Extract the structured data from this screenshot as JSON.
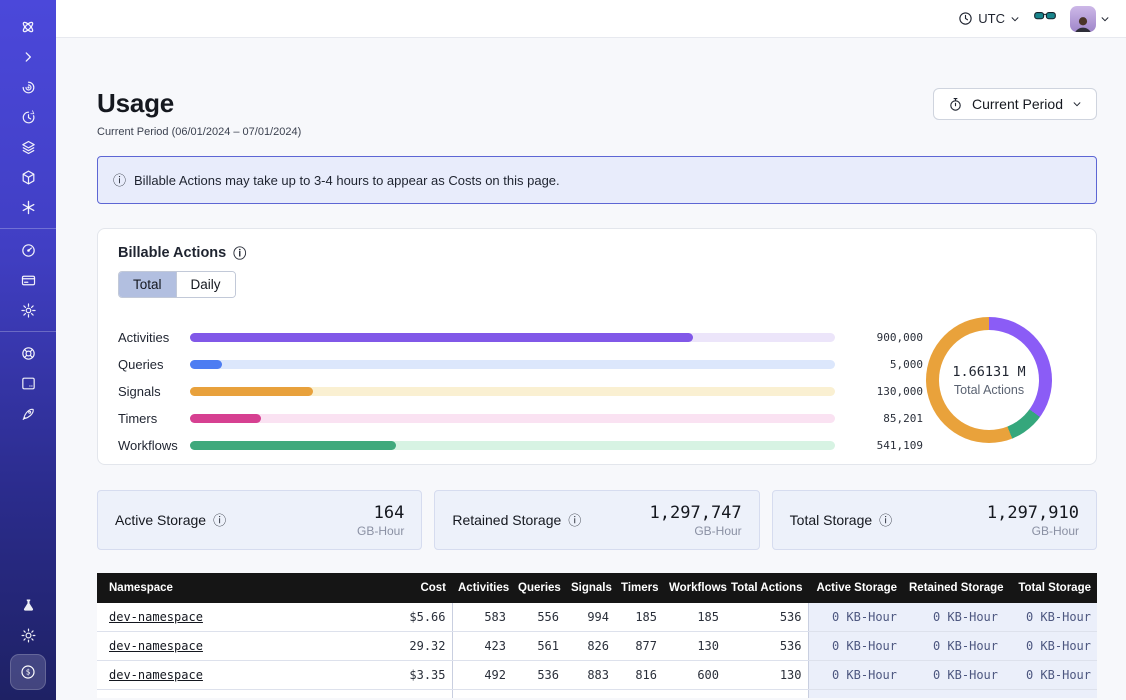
{
  "topbar": {
    "timezone_label": "UTC",
    "icons": [
      "clock-icon",
      "chevron-down-icon",
      "glasses-icon",
      "avatar",
      "chevron-down-icon"
    ]
  },
  "sidebar": {
    "accent_top": "#4b48da",
    "accent_bottom": "#1e2164",
    "top_icons": [
      "temporal-logo-icon",
      "chevron-right-icon",
      "swirl-namespaces-icon",
      "clock-history-icon",
      "layers-icon",
      "cube-icon",
      "asterisk-icon"
    ],
    "mid_icons": [
      "gauge-icon",
      "credit-card-icon",
      "gear-icon"
    ],
    "lower_icons": [
      "lifebuoy-icon",
      "terminal-icon",
      "rocket-icon"
    ],
    "bottom_icons": [
      "flask-icon",
      "sun-icon",
      "dollar-coin-icon"
    ],
    "active_icon": "dollar-coin-icon"
  },
  "header": {
    "title": "Usage",
    "subtitle": "Current Period (06/01/2024 – 07/01/2024)",
    "period_button_label": "Current Period"
  },
  "banner": {
    "text": "Billable Actions may take up to 3-4 hours to appear as Costs on this page."
  },
  "billable": {
    "title": "Billable Actions",
    "tabs": [
      {
        "label": "Total",
        "selected": true
      },
      {
        "label": "Daily",
        "selected": false
      }
    ]
  },
  "chart_data": [
    {
      "type": "bar",
      "orientation": "horizontal",
      "title": "Billable Actions (Total)",
      "categories": [
        "Activities",
        "Queries",
        "Signals",
        "Timers",
        "Workflows"
      ],
      "values": [
        900000,
        5000,
        130000,
        85201,
        541109
      ],
      "value_labels": [
        "900,000",
        "5,000",
        "130,000",
        "85,201",
        "541,109"
      ],
      "colors": [
        "#8158e8",
        "#4d7df2",
        "#e8a13c",
        "#d64091",
        "#3fa97c"
      ],
      "track_colors": [
        "#ece5fa",
        "#dce7fc",
        "#faf0d2",
        "#fae2f2",
        "#d7f3e3"
      ],
      "bar_pct": [
        78,
        5,
        19,
        11,
        32
      ],
      "grid": false,
      "legend": "none"
    },
    {
      "type": "donut",
      "label": "1.66131 M",
      "sublabel": "Total Actions",
      "total_actions": 1661310,
      "segments": [
        {
          "name": "Activities",
          "color": "#8b5cf6",
          "pct": 35
        },
        {
          "name": "Workflows",
          "color": "#35a77c",
          "pct": 9
        },
        {
          "name": "Signals",
          "color": "#e9a23b",
          "pct": 56
        }
      ]
    }
  ],
  "storage_cards": [
    {
      "label": "Active Storage",
      "value": "164",
      "unit": "GB-Hour"
    },
    {
      "label": "Retained Storage",
      "value": "1,297,747",
      "unit": "GB-Hour"
    },
    {
      "label": "Total Storage",
      "value": "1,297,910",
      "unit": "GB-Hour"
    }
  ],
  "table": {
    "headers": [
      "Namespace",
      "Cost",
      "Activities",
      "Queries",
      "Signals",
      "Timers",
      "Workflows",
      "Total Actions",
      "Active Storage",
      "Retained Storage",
      "Total Storage"
    ],
    "rows": [
      {
        "namespace": "dev-namespace",
        "cost": "$5.66",
        "activities": "583",
        "queries": "556",
        "signals": "994",
        "timers": "185",
        "workflows": "185",
        "total_actions": "536",
        "active_storage": "0 KB-Hour",
        "retained_storage": "0 KB-Hour",
        "total_storage": "0 KB-Hour"
      },
      {
        "namespace": "dev-namespace",
        "cost": "29.32",
        "activities": "423",
        "queries": "561",
        "signals": "826",
        "timers": "877",
        "workflows": "130",
        "total_actions": "536",
        "active_storage": "0 KB-Hour",
        "retained_storage": "0 KB-Hour",
        "total_storage": "0 KB-Hour"
      },
      {
        "namespace": "dev-namespace",
        "cost": "$3.35",
        "activities": "492",
        "queries": "536",
        "signals": "883",
        "timers": "816",
        "workflows": "600",
        "total_actions": "130",
        "active_storage": "0 KB-Hour",
        "retained_storage": "0 KB-Hour",
        "total_storage": "0 KB-Hour"
      }
    ]
  },
  "misc": {
    "info_glyph": "ⓘ"
  }
}
